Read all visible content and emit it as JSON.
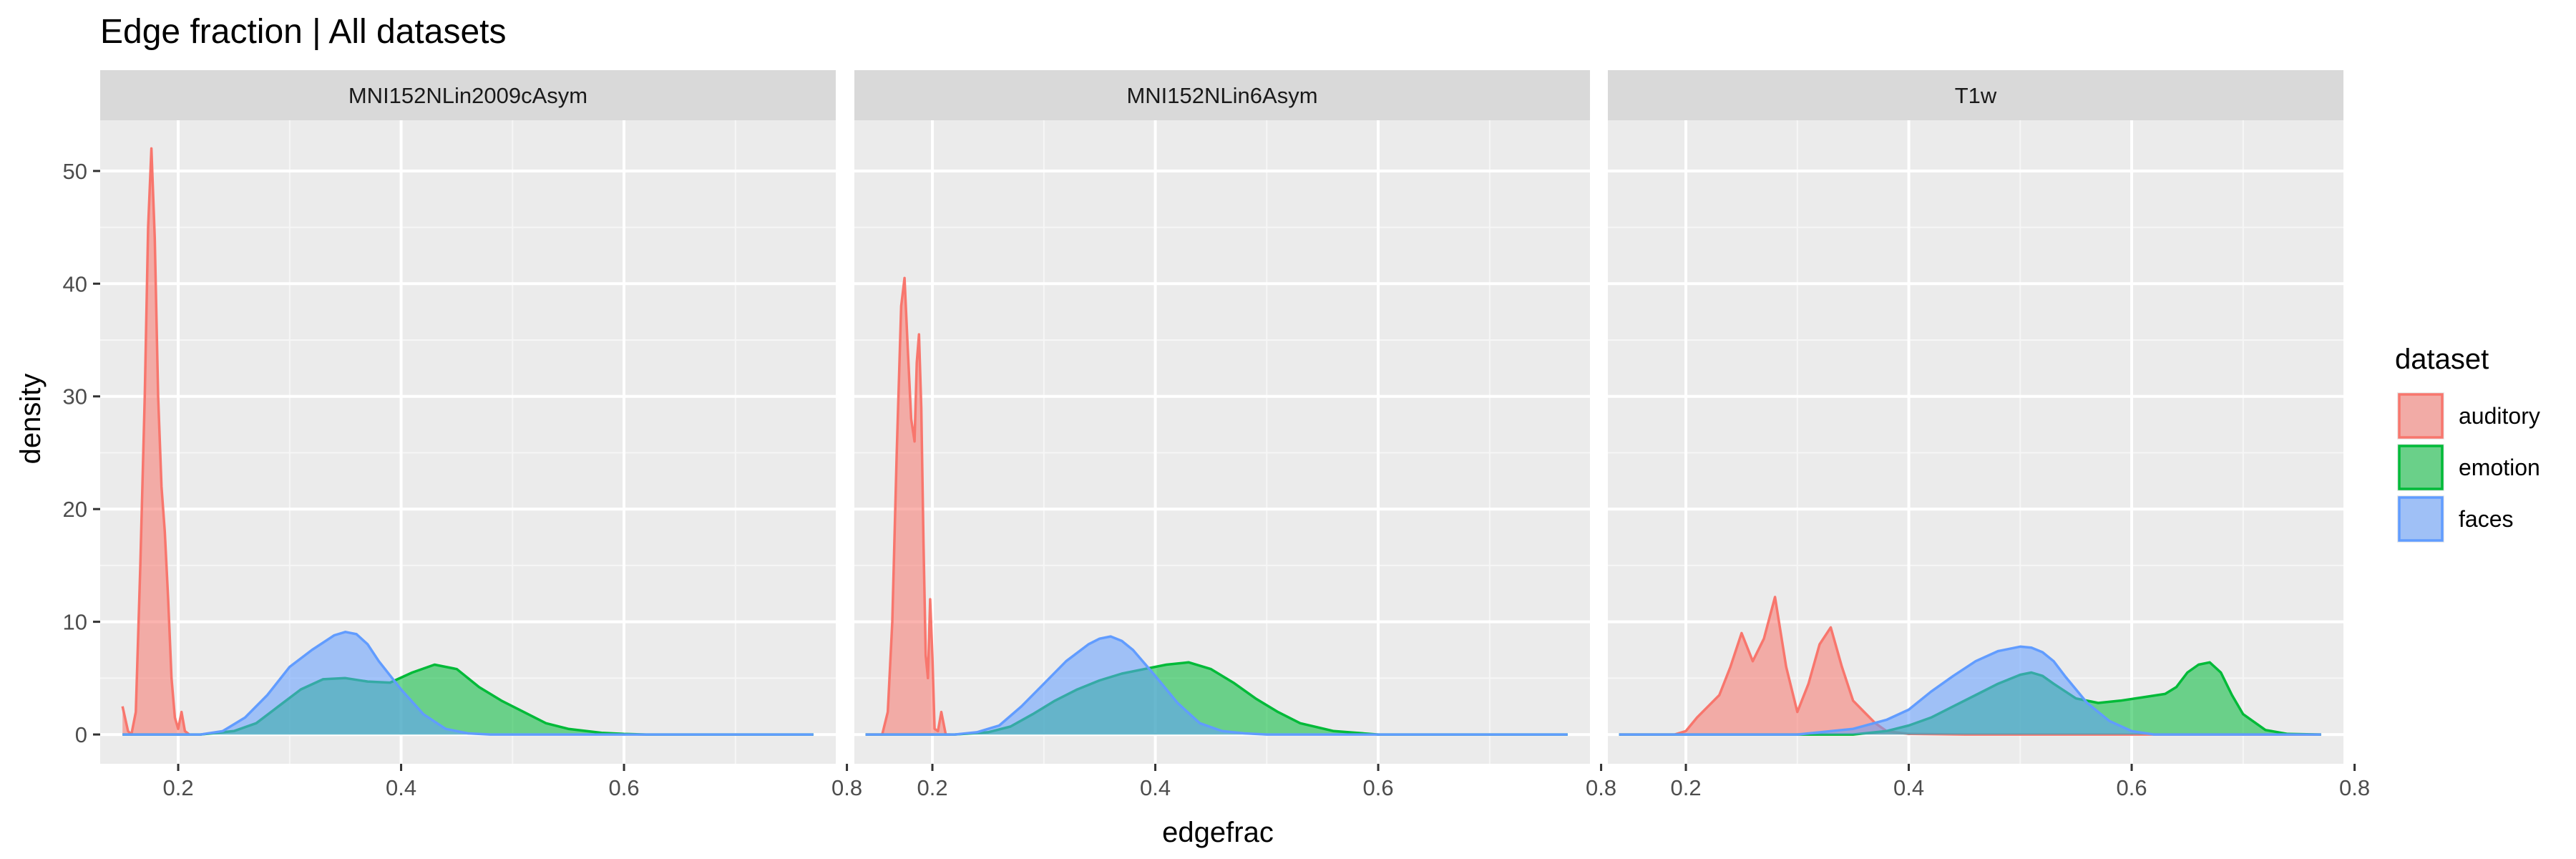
{
  "chart_data": {
    "type": "area",
    "title": "Edge fraction | All datasets",
    "xlabel": "edgefrac",
    "ylabel": "density",
    "xlim": [
      0.13,
      0.79
    ],
    "ylim": [
      -2.6,
      54.5
    ],
    "x_ticks": [
      0.2,
      0.4,
      0.6,
      0.8
    ],
    "x_tick_labels": [
      "0.2",
      "0.4",
      "0.6",
      "0.8"
    ],
    "y_ticks": [
      0,
      10,
      20,
      30,
      40,
      50
    ],
    "y_tick_labels": [
      "0",
      "10",
      "20",
      "30",
      "40",
      "50"
    ],
    "grid": true,
    "legend": {
      "title": "dataset",
      "position": "right",
      "entries": [
        {
          "label": "auditory",
          "fill": "#F8766D",
          "line": "#F8766D"
        },
        {
          "label": "emotion",
          "fill": "#00BA38",
          "line": "#00BA38"
        },
        {
          "label": "faces",
          "fill": "#619CFF",
          "line": "#619CFF"
        }
      ]
    },
    "panels": [
      {
        "strip": "MNI152NLin2009cAsym",
        "series": [
          {
            "name": "auditory",
            "x": [
              0.15,
              0.155,
              0.158,
              0.162,
              0.166,
              0.17,
              0.173,
              0.176,
              0.179,
              0.182,
              0.185,
              0.188,
              0.191,
              0.194,
              0.197,
              0.2,
              0.203,
              0.206,
              0.21
            ],
            "y": [
              2.5,
              0.3,
              0,
              2,
              15,
              30,
              45,
              52,
              44,
              30,
              22,
              18,
              12,
              5,
              1.5,
              0.5,
              2,
              0.3,
              0
            ]
          },
          {
            "name": "emotion",
            "x": [
              0.15,
              0.22,
              0.25,
              0.27,
              0.29,
              0.31,
              0.33,
              0.35,
              0.37,
              0.39,
              0.41,
              0.43,
              0.45,
              0.47,
              0.49,
              0.51,
              0.53,
              0.55,
              0.58,
              0.6,
              0.62,
              0.65,
              0.7,
              0.77
            ],
            "y": [
              0,
              0,
              0.3,
              1,
              2.5,
              4,
              4.9,
              5,
              4.7,
              4.6,
              5.5,
              6.2,
              5.8,
              4.2,
              3,
              2,
              1,
              0.5,
              0.15,
              0.05,
              0,
              0,
              0,
              0
            ]
          },
          {
            "name": "faces",
            "x": [
              0.15,
              0.22,
              0.24,
              0.26,
              0.28,
              0.3,
              0.32,
              0.34,
              0.35,
              0.36,
              0.37,
              0.38,
              0.4,
              0.42,
              0.44,
              0.46,
              0.48,
              0.5,
              0.55,
              0.6,
              0.77
            ],
            "y": [
              0,
              0,
              0.3,
              1.5,
              3.5,
              6,
              7.5,
              8.8,
              9.1,
              8.9,
              8,
              6.5,
              4,
              1.8,
              0.5,
              0.1,
              0,
              0,
              0,
              0,
              0
            ]
          }
        ]
      },
      {
        "strip": "MNI152NLin6Asym",
        "series": [
          {
            "name": "auditory",
            "x": [
              0.14,
              0.155,
              0.16,
              0.164,
              0.168,
              0.172,
              0.175,
              0.178,
              0.181,
              0.184,
              0.186,
              0.188,
              0.19,
              0.192,
              0.194,
              0.196,
              0.198,
              0.2,
              0.202,
              0.205,
              0.208,
              0.212,
              0.216
            ],
            "y": [
              0,
              0,
              2,
              10,
              25,
              38,
              40.5,
              34,
              28,
              26,
              33,
              35.5,
              29,
              17,
              7,
              5,
              12,
              7,
              0.5,
              0.3,
              2,
              0,
              0
            ]
          },
          {
            "name": "emotion",
            "x": [
              0.14,
              0.22,
              0.25,
              0.27,
              0.29,
              0.31,
              0.33,
              0.35,
              0.37,
              0.39,
              0.41,
              0.43,
              0.45,
              0.47,
              0.49,
              0.51,
              0.53,
              0.56,
              0.6,
              0.65,
              0.77
            ],
            "y": [
              0,
              0,
              0.2,
              0.7,
              1.8,
              3,
              4,
              4.8,
              5.4,
              5.8,
              6.2,
              6.4,
              5.8,
              4.6,
              3.2,
              2,
              1,
              0.3,
              0,
              0,
              0
            ]
          },
          {
            "name": "faces",
            "x": [
              0.14,
              0.22,
              0.24,
              0.26,
              0.28,
              0.3,
              0.32,
              0.34,
              0.35,
              0.36,
              0.37,
              0.38,
              0.4,
              0.42,
              0.44,
              0.46,
              0.48,
              0.5,
              0.55,
              0.6,
              0.77
            ],
            "y": [
              0,
              0,
              0.2,
              0.8,
              2.5,
              4.5,
              6.5,
              8,
              8.5,
              8.7,
              8.3,
              7.5,
              5.2,
              2.8,
              1,
              0.3,
              0.1,
              0,
              0,
              0,
              0
            ]
          }
        ]
      },
      {
        "strip": "T1w",
        "series": [
          {
            "name": "auditory",
            "x": [
              0.14,
              0.19,
              0.2,
              0.21,
              0.22,
              0.23,
              0.24,
              0.25,
              0.26,
              0.27,
              0.28,
              0.29,
              0.3,
              0.31,
              0.32,
              0.33,
              0.34,
              0.35,
              0.36,
              0.37,
              0.38,
              0.4,
              0.45,
              0.5,
              0.77
            ],
            "y": [
              0,
              0,
              0.3,
              1.5,
              2.5,
              3.5,
              6,
              9,
              6.5,
              8.5,
              12.2,
              6,
              2,
              4.5,
              8,
              9.5,
              6,
              3,
              2,
              1,
              0.3,
              0.05,
              0,
              0,
              0
            ]
          },
          {
            "name": "emotion",
            "x": [
              0.14,
              0.35,
              0.38,
              0.4,
              0.42,
              0.44,
              0.46,
              0.48,
              0.5,
              0.51,
              0.52,
              0.53,
              0.55,
              0.57,
              0.59,
              0.61,
              0.63,
              0.64,
              0.65,
              0.66,
              0.67,
              0.68,
              0.69,
              0.7,
              0.72,
              0.74,
              0.77
            ],
            "y": [
              0,
              0,
              0.3,
              0.8,
              1.5,
              2.5,
              3.5,
              4.5,
              5.3,
              5.5,
              5.2,
              4.5,
              3.2,
              2.8,
              3,
              3.3,
              3.6,
              4.2,
              5.5,
              6.2,
              6.4,
              5.5,
              3.5,
              1.8,
              0.4,
              0.05,
              0
            ]
          },
          {
            "name": "faces",
            "x": [
              0.14,
              0.3,
              0.35,
              0.38,
              0.4,
              0.42,
              0.44,
              0.46,
              0.48,
              0.5,
              0.51,
              0.52,
              0.53,
              0.54,
              0.56,
              0.58,
              0.6,
              0.62,
              0.77
            ],
            "y": [
              0,
              0,
              0.5,
              1.3,
              2.2,
              3.8,
              5.2,
              6.5,
              7.4,
              7.8,
              7.7,
              7.3,
              6.5,
              5.2,
              2.8,
              1.2,
              0.3,
              0,
              0
            ]
          }
        ]
      }
    ]
  }
}
